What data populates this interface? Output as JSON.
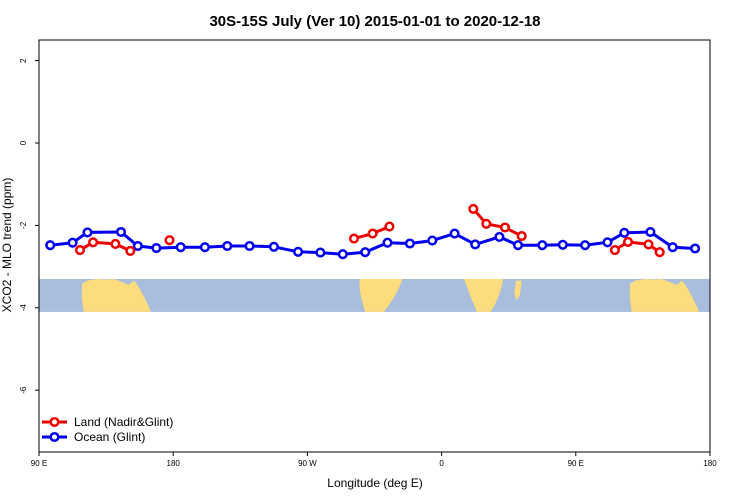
{
  "chart_data": {
    "type": "line",
    "title": "30S-15S July (Ver 10)   2015-01-01 to 2020-12-18",
    "xlabel": "Longitude (deg E)",
    "ylabel": "XCO2 - MLO trend (ppm)",
    "xlim": [
      90,
      450
    ],
    "ylim": [
      -7.5,
      2.5
    ],
    "x_ticks": [
      {
        "value": 90,
        "label": "90 E"
      },
      {
        "value": 162,
        "label": "180"
      },
      {
        "value": 234,
        "label": "90 W"
      },
      {
        "value": 306,
        "label": "0"
      },
      {
        "value": 378,
        "label": "90 E"
      },
      {
        "value": 450,
        "label": "180"
      }
    ],
    "y_ticks": [
      {
        "value": 2,
        "label": "2"
      },
      {
        "value": 0,
        "label": "0"
      },
      {
        "value": -2,
        "label": "-2"
      },
      {
        "value": -4,
        "label": "-4"
      },
      {
        "value": -6,
        "label": "-6"
      }
    ],
    "grid": false,
    "legend_position": "bottom-left",
    "map_strip": {
      "y_top": -3.3,
      "y_bottom": -4.1,
      "ocean_color": "#a8bedc",
      "land_color": "#fcdc7c"
    },
    "series": [
      {
        "name": "Ocean (Glint)",
        "color": "#0000ee",
        "segments": [
          [
            [
              96,
              -2.48
            ],
            [
              108,
              -2.42
            ],
            [
              116,
              -2.17
            ],
            [
              134,
              -2.16
            ],
            [
              143,
              -2.5
            ],
            [
              153,
              -2.55
            ],
            [
              166,
              -2.53
            ],
            [
              179,
              -2.53
            ],
            [
              191,
              -2.5
            ],
            [
              203,
              -2.5
            ],
            [
              216,
              -2.52
            ],
            [
              229,
              -2.64
            ],
            [
              241,
              -2.66
            ],
            [
              253,
              -2.7
            ],
            [
              265,
              -2.65
            ],
            [
              277,
              -2.42
            ],
            [
              289,
              -2.44
            ],
            [
              301,
              -2.37
            ],
            [
              313,
              -2.2
            ],
            [
              324,
              -2.46
            ],
            [
              337,
              -2.28
            ],
            [
              347,
              -2.48
            ],
            [
              360,
              -2.48
            ],
            [
              371,
              -2.47
            ],
            [
              383,
              -2.48
            ],
            [
              395,
              -2.41
            ],
            [
              404,
              -2.18
            ],
            [
              418,
              -2.16
            ],
            [
              430,
              -2.53
            ],
            [
              442,
              -2.56
            ]
          ]
        ]
      },
      {
        "name": "Land (Nadir&Glint)",
        "color": "#ee0000",
        "segments": [
          [
            [
              112,
              -2.6
            ],
            [
              119,
              -2.41
            ],
            [
              131,
              -2.45
            ],
            [
              139,
              -2.62
            ]
          ],
          [
            [
              160,
              -2.36
            ]
          ],
          [
            [
              259,
              -2.32
            ],
            [
              269,
              -2.2
            ],
            [
              278,
              -2.03
            ]
          ],
          [
            [
              323,
              -1.6
            ],
            [
              330,
              -1.96
            ],
            [
              340,
              -2.05
            ],
            [
              349,
              -2.26
            ]
          ],
          [
            [
              399,
              -2.6
            ],
            [
              406,
              -2.4
            ],
            [
              417,
              -2.46
            ],
            [
              423,
              -2.65
            ]
          ]
        ]
      }
    ]
  }
}
